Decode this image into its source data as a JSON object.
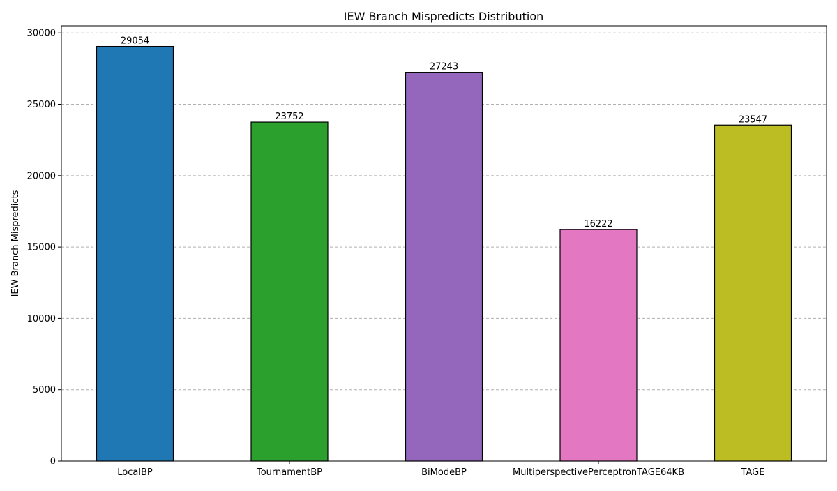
{
  "chart_data": {
    "type": "bar",
    "title": "IEW Branch Mispredicts Distribution",
    "xlabel": "",
    "ylabel": "IEW Branch Mispredicts",
    "categories": [
      "LocalBP",
      "TournamentBP",
      "BiModeBP",
      "MultiperspectivePerceptronTAGE64KB",
      "TAGE"
    ],
    "values": [
      29054,
      23752,
      27243,
      16222,
      23547
    ],
    "data_labels": [
      "29054",
      "23752",
      "27243",
      "16222",
      "23547"
    ],
    "colors": [
      "#1f77b4",
      "#2ca02c",
      "#9467bd",
      "#e377c2",
      "#bcbd22"
    ],
    "ylim": [
      0,
      30500
    ],
    "yticks": [
      0,
      5000,
      10000,
      15000,
      20000,
      25000,
      30000
    ],
    "grid": true,
    "grid_axis": "y",
    "legend": "none"
  }
}
